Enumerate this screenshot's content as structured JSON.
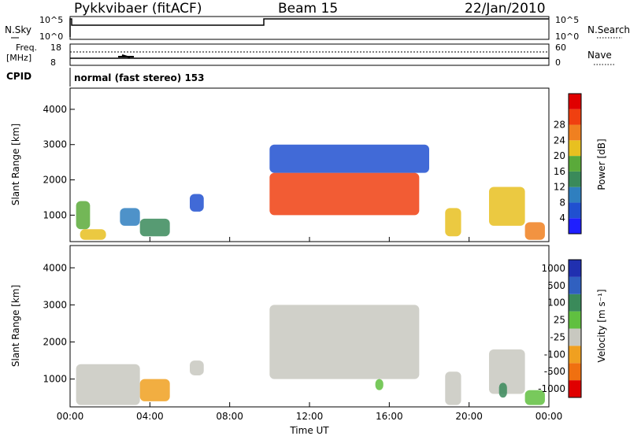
{
  "header": {
    "title": "Pykkvibaer (fitACF)",
    "beam": "Beam 15",
    "date": "22/Jan/2010"
  },
  "strip_panels": {
    "nsky_label": "N.Sky",
    "nsky_ticks": [
      "10^5",
      "10^0"
    ],
    "nsearch_label": "N.Search",
    "freq_label": "Freq.",
    "freq_unit": "[MHz]",
    "freq_ticks": [
      "18",
      "8"
    ],
    "nave_label": "Nave",
    "nave_ticks": [
      "60",
      "0"
    ],
    "cpid_label": "CPID",
    "cpid_text": "normal (fast stereo) 153"
  },
  "colors": {
    "power": [
      "#1f1fff",
      "#2050d0",
      "#2f7fbf",
      "#3a8a5a",
      "#5aaa3a",
      "#e8c020",
      "#f08020",
      "#f04010",
      "#e00000"
    ],
    "velocity": [
      "#2030b0",
      "#3060c0",
      "#3a8a5a",
      "#60c040",
      "#c8c8c0",
      "#f0a020",
      "#f07010",
      "#e00000"
    ]
  },
  "chart_data": [
    {
      "type": "heatmap",
      "name_ref": "power",
      "xlabel": "",
      "ylabel": "Slant Range [km]",
      "x_ticks": [
        "00:00",
        "04:00",
        "08:00",
        "12:00",
        "16:00",
        "20:00",
        "00:00"
      ],
      "y_ticks": [
        "1000",
        "2000",
        "3000",
        "4000"
      ],
      "xlim": [
        0,
        24
      ],
      "ylim": [
        250,
        4600
      ],
      "colorbar_label": "Power [dB]",
      "colorbar_ticks": [
        "4",
        "8",
        "12",
        "16",
        "20",
        "24",
        "28"
      ],
      "regions": [
        {
          "t0": 0.3,
          "t1": 1.0,
          "r0": 600,
          "r1": 1400,
          "level": 4
        },
        {
          "t0": 0.5,
          "t1": 1.8,
          "r0": 300,
          "r1": 600,
          "level": 5
        },
        {
          "t0": 2.5,
          "t1": 3.5,
          "r0": 700,
          "r1": 1200,
          "level": 2
        },
        {
          "t0": 3.5,
          "t1": 5.0,
          "r0": 400,
          "r1": 900,
          "level": 3
        },
        {
          "t0": 6.0,
          "t1": 6.7,
          "r0": 1100,
          "r1": 1600,
          "level": 1
        },
        {
          "t0": 10.0,
          "t1": 17.5,
          "r0": 1000,
          "r1": 2200,
          "level": 7
        },
        {
          "t0": 10.0,
          "t1": 18.0,
          "r0": 2200,
          "r1": 3000,
          "level": 1
        },
        {
          "t0": 18.8,
          "t1": 19.6,
          "r0": 400,
          "r1": 1200,
          "level": 5
        },
        {
          "t0": 21.0,
          "t1": 22.8,
          "r0": 700,
          "r1": 1800,
          "level": 5
        },
        {
          "t0": 22.8,
          "t1": 23.8,
          "r0": 300,
          "r1": 800,
          "level": 6
        }
      ]
    },
    {
      "type": "heatmap",
      "name_ref": "velocity",
      "xlabel": "Time UT",
      "ylabel": "Slant Range [km]",
      "x_ticks": [
        "00:00",
        "04:00",
        "08:00",
        "12:00",
        "16:00",
        "20:00",
        "00:00"
      ],
      "y_ticks": [
        "1000",
        "2000",
        "3000",
        "4000"
      ],
      "xlim": [
        0,
        24
      ],
      "ylim": [
        250,
        4600
      ],
      "colorbar_label": "Velocity [m s⁻¹]",
      "colorbar_ticks": [
        "1000",
        "500",
        "100",
        "25",
        "-25",
        "-100",
        "-500",
        "-1000"
      ],
      "regions": [
        {
          "t0": 0.3,
          "t1": 3.5,
          "r0": 300,
          "r1": 1400,
          "level": 4
        },
        {
          "t0": 3.5,
          "t1": 5.0,
          "r0": 400,
          "r1": 1000,
          "level": 5
        },
        {
          "t0": 6.0,
          "t1": 6.7,
          "r0": 1100,
          "r1": 1500,
          "level": 4
        },
        {
          "t0": 10.0,
          "t1": 17.5,
          "r0": 1000,
          "r1": 3000,
          "level": 4
        },
        {
          "t0": 15.3,
          "t1": 15.7,
          "r0": 700,
          "r1": 1000,
          "level": 3
        },
        {
          "t0": 18.8,
          "t1": 19.6,
          "r0": 300,
          "r1": 1200,
          "level": 4
        },
        {
          "t0": 21.0,
          "t1": 22.8,
          "r0": 600,
          "r1": 1800,
          "level": 4
        },
        {
          "t0": 21.5,
          "t1": 21.9,
          "r0": 500,
          "r1": 900,
          "level": 2
        },
        {
          "t0": 22.8,
          "t1": 23.8,
          "r0": 300,
          "r1": 700,
          "level": 3
        }
      ]
    }
  ]
}
